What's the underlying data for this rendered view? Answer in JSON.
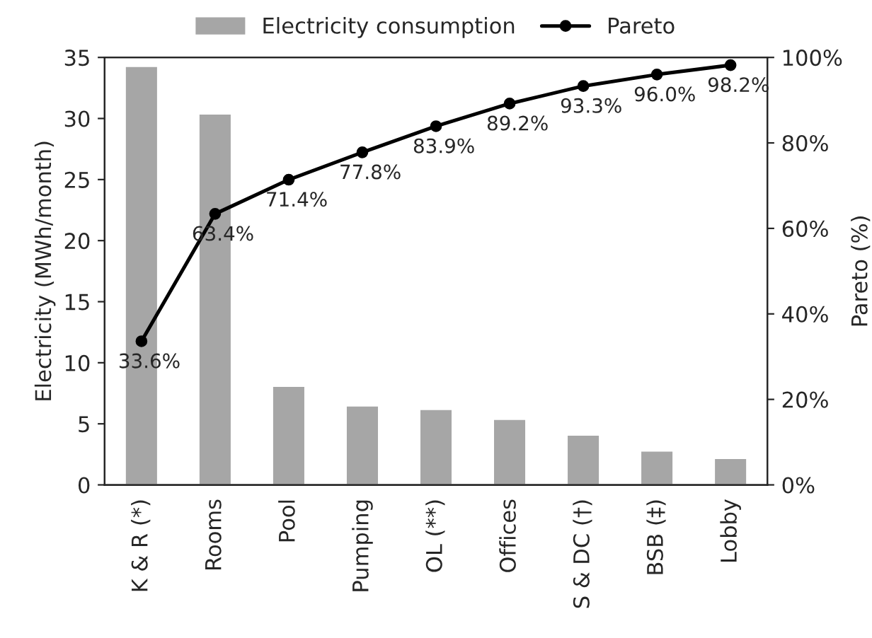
{
  "chart_data": {
    "type": "bar",
    "categories": [
      "K & R (*)",
      "Rooms",
      "Pool",
      "Pumping",
      "OL (**)",
      "Offices",
      "S & DC (†)",
      "BSB (‡)",
      "Lobby"
    ],
    "ylabel": "Electricity (MWh/month)",
    "y2label": "Pareto (%)",
    "ylim": [
      0,
      35
    ],
    "yticks": [
      0,
      5,
      10,
      15,
      20,
      25,
      30,
      35
    ],
    "y2lim": [
      0,
      100
    ],
    "y2ticks": [
      {
        "value": 0,
        "label": "0%"
      },
      {
        "value": 20,
        "label": "20%"
      },
      {
        "value": 40,
        "label": "40%"
      },
      {
        "value": 60,
        "label": "60%"
      },
      {
        "value": 80,
        "label": "80%"
      },
      {
        "value": 100,
        "label": "100%"
      }
    ],
    "series": [
      {
        "name": "Electricity consumption",
        "color": "#a6a6a6",
        "values": [
          34.3,
          30.4,
          8.1,
          6.5,
          6.2,
          5.4,
          4.1,
          2.8,
          2.2
        ]
      },
      {
        "name": "Pareto",
        "type": "line",
        "axis": "y2",
        "color": "#000000",
        "marker": "circle",
        "values": [
          33.6,
          63.4,
          71.4,
          77.8,
          83.9,
          89.2,
          93.3,
          96.0,
          98.2
        ],
        "value_labels": [
          "33.6%",
          "63.4%",
          "71.4%",
          "77.8%",
          "83.9%",
          "89.2%",
          "93.3%",
          "96.0%",
          "98.2%"
        ]
      }
    ],
    "legend": "top",
    "grid": false
  }
}
